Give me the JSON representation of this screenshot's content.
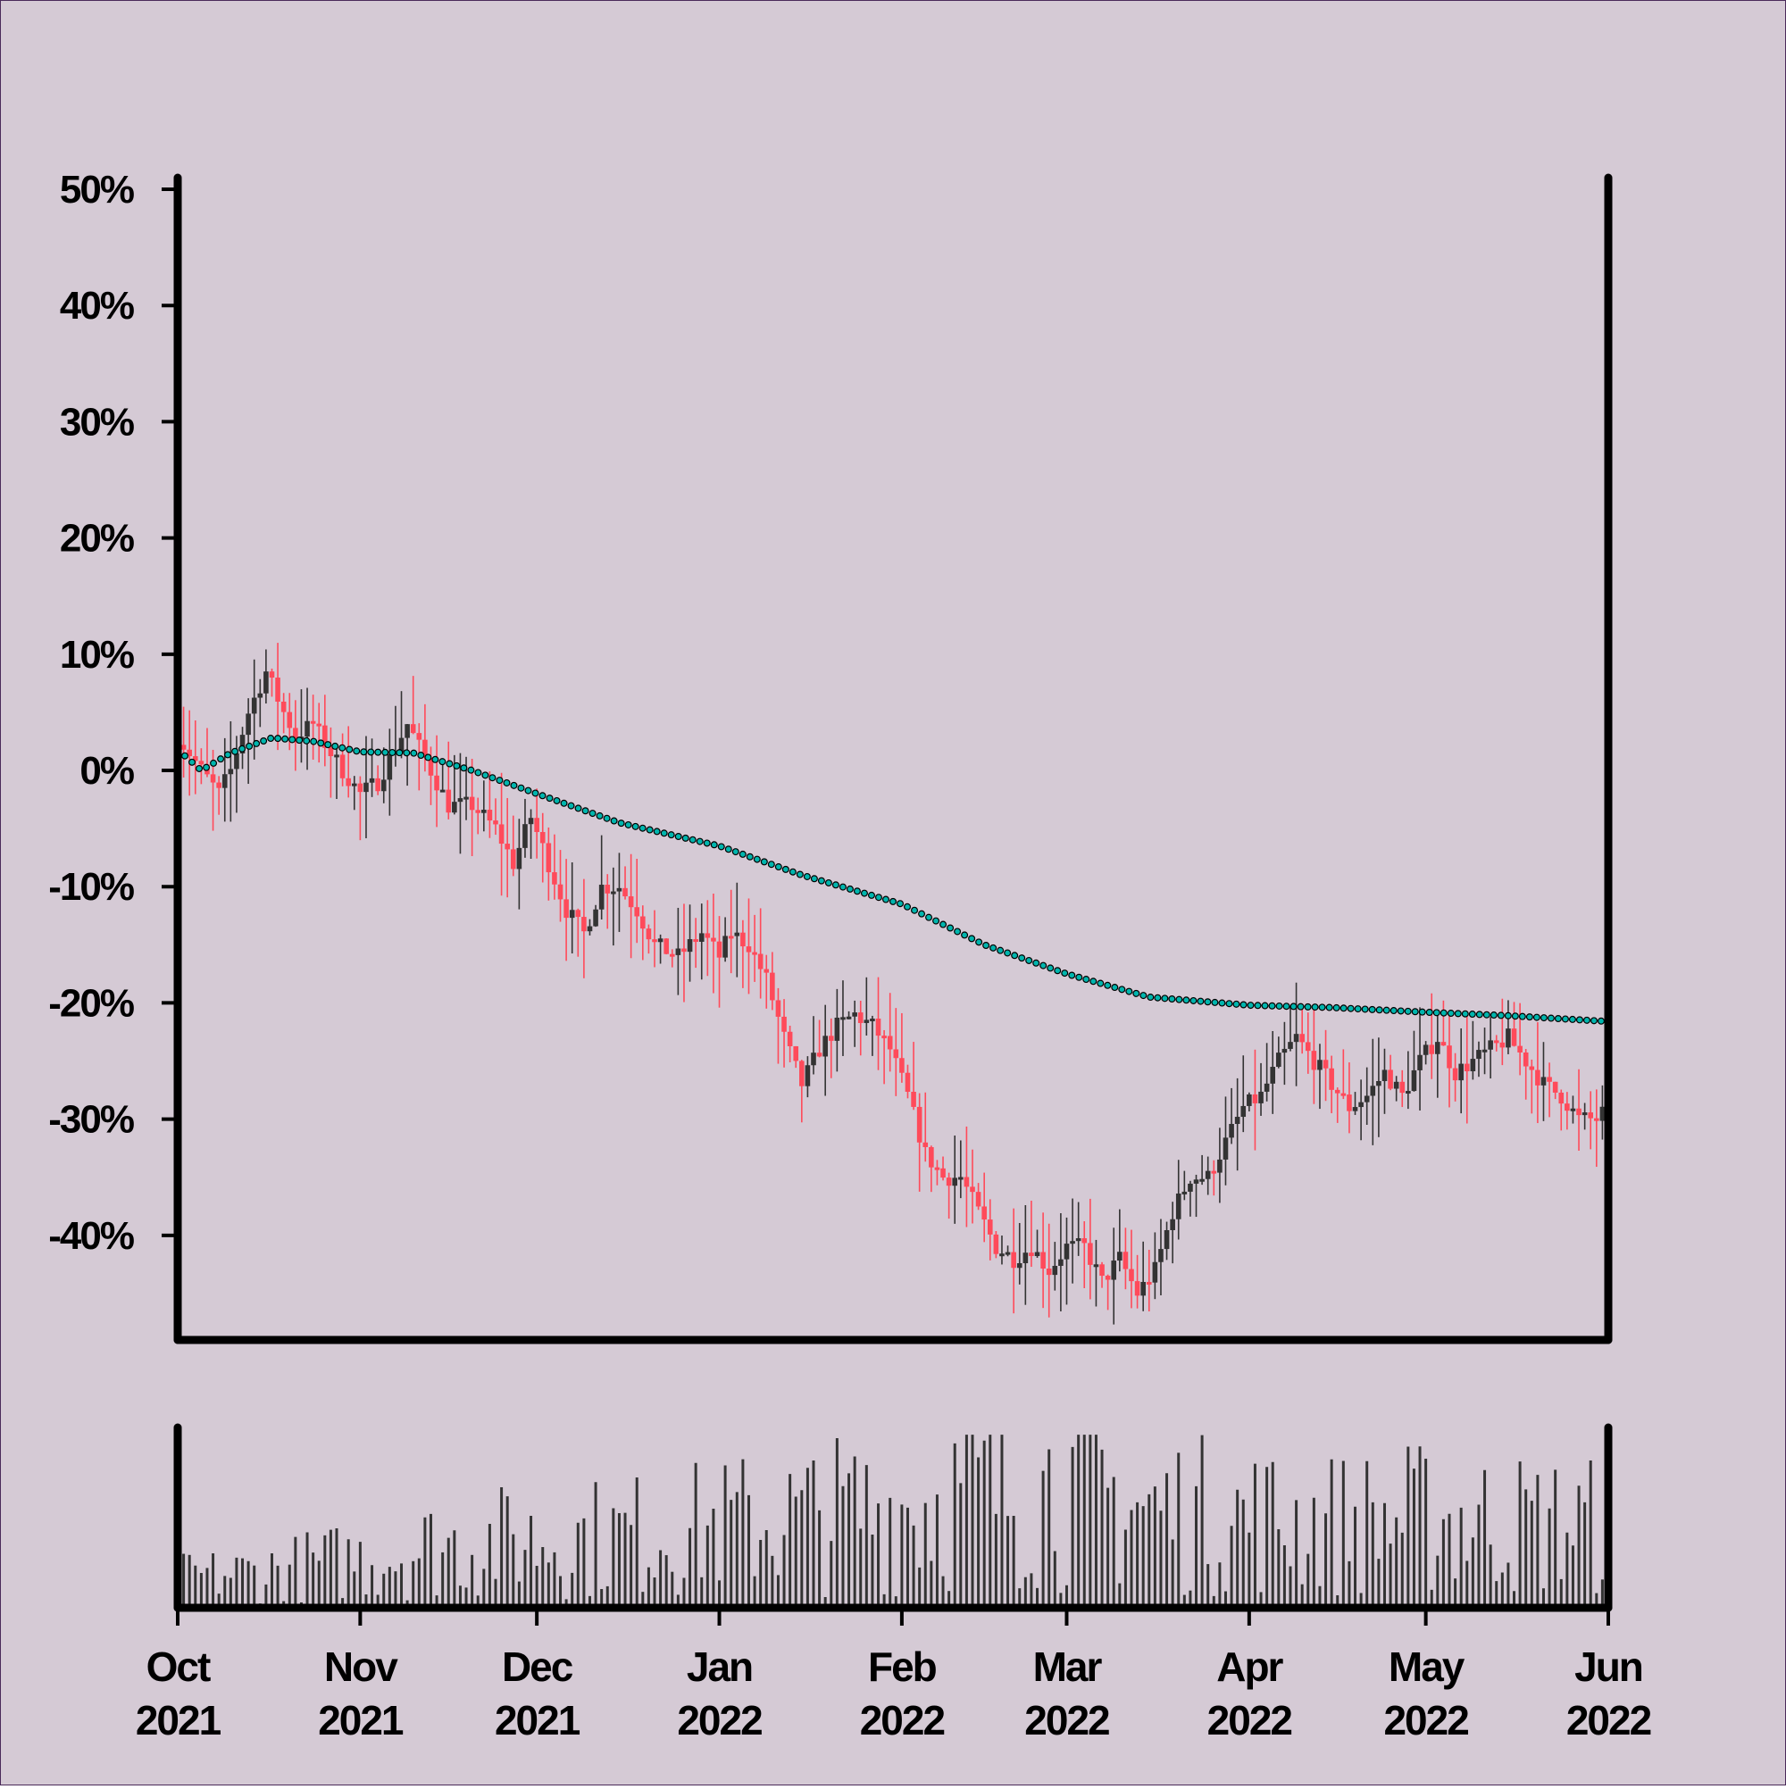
{
  "colors": {
    "background": "#d5cad5",
    "axis": "#000000",
    "up_candle": "#333333",
    "down_candle": "#ff4a5a",
    "volume_bar": "#333333",
    "average_line": "#00b5ad",
    "average_dot_border": "#000000"
  },
  "chart_data": [
    {
      "type": "candlestick",
      "title": "",
      "xlabel": "",
      "ylabel": "",
      "y_unit": "%",
      "x_range": [
        "2021-10-01",
        "2022-06-01"
      ],
      "ylim": [
        -49,
        51
      ],
      "y_ticks": [
        50,
        40,
        30,
        20,
        10,
        0,
        -10,
        -20,
        -30,
        -40
      ],
      "y_tick_labels": [
        "50%",
        "40%",
        "30%",
        "20%",
        "10%",
        "0%",
        "-10%",
        "-20%",
        "-30%",
        "-40%"
      ],
      "x_ticks": [
        "2021-10-01",
        "2021-11-01",
        "2021-12-01",
        "2022-01-01",
        "2022-02-01",
        "2022-03-01",
        "2022-04-01",
        "2022-05-01",
        "2022-06-01"
      ],
      "x_tick_labels": [
        [
          "Oct",
          "2021"
        ],
        [
          "Nov",
          "2021"
        ],
        [
          "Dec",
          "2021"
        ],
        [
          "Jan",
          "2022"
        ],
        [
          "Feb",
          "2022"
        ],
        [
          "Mar",
          "2022"
        ],
        [
          "Apr",
          "2022"
        ],
        [
          "May",
          "2022"
        ],
        [
          "Jun",
          "2022"
        ]
      ],
      "grid": false,
      "close_series": {
        "name": "",
        "points": [
          [
            "2021-10-01",
            3
          ],
          [
            "2021-10-05",
            0
          ],
          [
            "2021-10-08",
            -2
          ],
          [
            "2021-10-10",
            0
          ],
          [
            "2021-10-13",
            5
          ],
          [
            "2021-10-16",
            8.5
          ],
          [
            "2021-10-19",
            5
          ],
          [
            "2021-10-21",
            3
          ],
          [
            "2021-10-24",
            4
          ],
          [
            "2021-10-27",
            1.5
          ],
          [
            "2021-10-29",
            0
          ],
          [
            "2021-11-01",
            -2
          ],
          [
            "2021-11-04",
            -1
          ],
          [
            "2021-11-06",
            1
          ],
          [
            "2021-11-09",
            4
          ],
          [
            "2021-11-12",
            1
          ],
          [
            "2021-11-16",
            -3
          ],
          [
            "2021-11-20",
            -3
          ],
          [
            "2021-11-24",
            -5
          ],
          [
            "2021-11-27",
            -8
          ],
          [
            "2021-11-30",
            -4
          ],
          [
            "2021-12-03",
            -8
          ],
          [
            "2021-12-06",
            -12
          ],
          [
            "2021-12-09",
            -14
          ],
          [
            "2021-12-12",
            -10
          ],
          [
            "2021-12-15",
            -10
          ],
          [
            "2021-12-18",
            -12
          ],
          [
            "2021-12-21",
            -15
          ],
          [
            "2021-12-25",
            -16
          ],
          [
            "2021-12-29",
            -14
          ],
          [
            "2022-01-01",
            -16
          ],
          [
            "2022-01-03",
            -14
          ],
          [
            "2022-01-06",
            -15
          ],
          [
            "2022-01-09",
            -18
          ],
          [
            "2022-01-12",
            -23
          ],
          [
            "2022-01-15",
            -27
          ],
          [
            "2022-01-18",
            -24
          ],
          [
            "2022-01-21",
            -22
          ],
          [
            "2022-01-24",
            -21
          ],
          [
            "2022-01-27",
            -22
          ],
          [
            "2022-01-30",
            -24
          ],
          [
            "2022-02-02",
            -28
          ],
          [
            "2022-02-05",
            -33
          ],
          [
            "2022-02-08",
            -35
          ],
          [
            "2022-02-11",
            -35
          ],
          [
            "2022-02-14",
            -38
          ],
          [
            "2022-02-17",
            -41
          ],
          [
            "2022-02-20",
            -42
          ],
          [
            "2022-02-23",
            -41
          ],
          [
            "2022-02-26",
            -43
          ],
          [
            "2022-03-01",
            -41
          ],
          [
            "2022-03-04",
            -41
          ],
          [
            "2022-03-07",
            -44
          ],
          [
            "2022-03-10",
            -42
          ],
          [
            "2022-03-13",
            -45
          ],
          [
            "2022-03-16",
            -43
          ],
          [
            "2022-03-19",
            -38
          ],
          [
            "2022-03-22",
            -35
          ],
          [
            "2022-03-25",
            -35
          ],
          [
            "2022-03-28",
            -32
          ],
          [
            "2022-03-31",
            -29
          ],
          [
            "2022-04-03",
            -28
          ],
          [
            "2022-04-06",
            -25
          ],
          [
            "2022-04-09",
            -23
          ],
          [
            "2022-04-12",
            -25
          ],
          [
            "2022-04-15",
            -27
          ],
          [
            "2022-04-18",
            -29
          ],
          [
            "2022-04-21",
            -28
          ],
          [
            "2022-04-24",
            -26
          ],
          [
            "2022-04-27",
            -28
          ],
          [
            "2022-04-30",
            -25
          ],
          [
            "2022-05-03",
            -23
          ],
          [
            "2022-05-06",
            -26
          ],
          [
            "2022-05-09",
            -25
          ],
          [
            "2022-05-12",
            -24
          ],
          [
            "2022-05-15",
            -23
          ],
          [
            "2022-05-18",
            -25
          ],
          [
            "2022-05-21",
            -27
          ],
          [
            "2022-05-24",
            -28
          ],
          [
            "2022-05-27",
            -30
          ],
          [
            "2022-05-30",
            -30
          ],
          [
            "2022-06-01",
            -29
          ]
        ]
      },
      "average_series": {
        "name": "",
        "style": "dotted",
        "points": [
          [
            "2021-10-01",
            1.8
          ],
          [
            "2021-10-05",
            0
          ],
          [
            "2021-10-10",
            1.5
          ],
          [
            "2021-10-17",
            2.8
          ],
          [
            "2021-10-24",
            2.5
          ],
          [
            "2021-11-01",
            1.6
          ],
          [
            "2021-11-10",
            1.5
          ],
          [
            "2021-11-20",
            0
          ],
          [
            "2021-12-01",
            -2
          ],
          [
            "2021-12-15",
            -4.5
          ],
          [
            "2022-01-01",
            -6.5
          ],
          [
            "2022-01-15",
            -9
          ],
          [
            "2022-02-01",
            -11.5
          ],
          [
            "2022-02-15",
            -15
          ],
          [
            "2022-03-01",
            -17.5
          ],
          [
            "2022-03-15",
            -19.5
          ],
          [
            "2022-04-01",
            -20.2
          ],
          [
            "2022-04-15",
            -20.4
          ],
          [
            "2022-05-01",
            -20.8
          ],
          [
            "2022-05-15",
            -21.1
          ],
          [
            "2022-06-01",
            -21.6
          ]
        ]
      }
    },
    {
      "type": "bar",
      "title": "",
      "xlabel": "",
      "ylabel": "",
      "ylim": [
        0,
        100
      ],
      "y_ticks": [],
      "volume_series": {
        "name": "",
        "points": [
          [
            "2021-10-01",
            18
          ],
          [
            "2021-10-15",
            22
          ],
          [
            "2021-11-01",
            30
          ],
          [
            "2021-11-15",
            38
          ],
          [
            "2021-12-01",
            42
          ],
          [
            "2021-12-15",
            44
          ],
          [
            "2022-01-01",
            50
          ],
          [
            "2022-01-15",
            55
          ],
          [
            "2022-02-01",
            62
          ],
          [
            "2022-02-15",
            72
          ],
          [
            "2022-03-01",
            75
          ],
          [
            "2022-03-15",
            60
          ],
          [
            "2022-04-01",
            55
          ],
          [
            "2022-04-15",
            52
          ],
          [
            "2022-05-01",
            55
          ],
          [
            "2022-05-15",
            52
          ],
          [
            "2022-06-01",
            50
          ]
        ]
      }
    }
  ]
}
